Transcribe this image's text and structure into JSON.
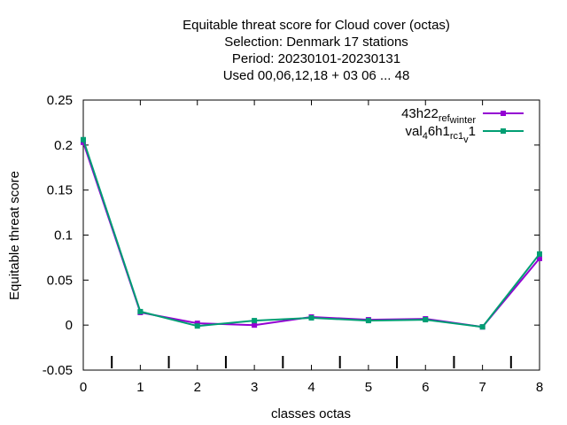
{
  "chart_data": {
    "type": "line",
    "title_lines": [
      "Equitable threat score  for Cloud cover (octas)",
      "Selection: Denmark     17 stations",
      "Period: 20230101-20230131",
      "Used  00,06,12,18  + 03 06 ... 48"
    ],
    "xlabel": "classes octas",
    "ylabel": "Equitable threat score",
    "xlim": [
      0,
      8
    ],
    "ylim": [
      -0.05,
      0.25
    ],
    "x_ticks": [
      0,
      1,
      2,
      3,
      4,
      5,
      6,
      7,
      8
    ],
    "y_ticks": [
      -0.05,
      0,
      0.05,
      0.1,
      0.15,
      0.2,
      0.25
    ],
    "y_tick_labels": [
      "-0.05",
      "0",
      "0.05",
      "0.1",
      "0.15",
      "0.2",
      "0.25"
    ],
    "minor_x_marks": [
      0.5,
      1.5,
      2.5,
      3.5,
      4.5,
      5.5,
      6.5,
      7.5
    ],
    "grid": false,
    "legend_position": "top-right",
    "x": [
      0,
      1,
      2,
      3,
      4,
      5,
      6,
      7,
      8
    ],
    "series": [
      {
        "name_parts": [
          "43h22",
          "ref",
          "winter"
        ],
        "color": "#9400d3",
        "values": [
          0.203,
          0.014,
          0.002,
          0.0,
          0.009,
          0.006,
          0.007,
          -0.002,
          0.074
        ]
      },
      {
        "name_parts": [
          "val",
          "4",
          "6h1",
          "rc1",
          "v",
          "1"
        ],
        "color": "#009e73",
        "values": [
          0.206,
          0.015,
          -0.001,
          0.005,
          0.008,
          0.005,
          0.006,
          -0.002,
          0.079
        ]
      }
    ]
  }
}
